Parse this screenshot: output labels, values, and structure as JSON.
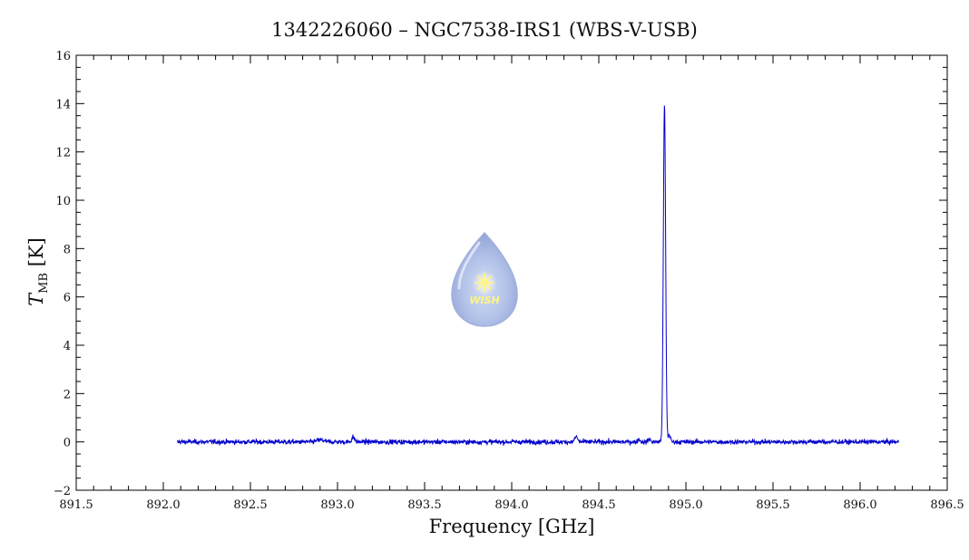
{
  "chart_data": {
    "type": "line",
    "title": "1342226060 – NGC7538-IRS1 (WBS-V-USB)",
    "xlabel": "Frequency [GHz]",
    "ylabel_main": "T",
    "ylabel_sub": "MB",
    "ylabel_unit": "[K]",
    "xlim": [
      891.5,
      896.5
    ],
    "ylim": [
      -2,
      16
    ],
    "x_ticks": [
      "891.5",
      "892.0",
      "892.5",
      "893.0",
      "893.5",
      "894.0",
      "894.5",
      "895.0",
      "895.5",
      "896.0",
      "896.5"
    ],
    "x_tick_values": [
      891.5,
      892.0,
      892.5,
      893.0,
      893.5,
      894.0,
      894.5,
      895.0,
      895.5,
      896.0,
      896.5
    ],
    "y_ticks": [
      "−2",
      "0",
      "2",
      "4",
      "6",
      "8",
      "10",
      "12",
      "14",
      "16"
    ],
    "y_tick_values": [
      -2,
      0,
      2,
      4,
      6,
      8,
      10,
      12,
      14,
      16
    ],
    "grid": false,
    "series": [
      {
        "color": "#0000cc",
        "x_range": [
          892.08,
          896.22
        ],
        "baseline": 0.0,
        "noise_rms": 0.05,
        "features": [
          {
            "x": 892.9,
            "peak": 0.08,
            "width": 0.02
          },
          {
            "x": 893.09,
            "peak": 0.2,
            "width": 0.008
          },
          {
            "x": 894.37,
            "peak": 0.22,
            "width": 0.008
          },
          {
            "x": 894.73,
            "peak": 0.12,
            "width": 0.006
          },
          {
            "x": 894.79,
            "peak": 0.12,
            "width": 0.006
          },
          {
            "x": 894.877,
            "peak": 14.0,
            "width": 0.0065
          },
          {
            "x": 894.905,
            "peak": 0.3,
            "width": 0.006
          }
        ]
      }
    ]
  },
  "logo": {
    "text": "WISH",
    "name": "wish-logo"
  }
}
